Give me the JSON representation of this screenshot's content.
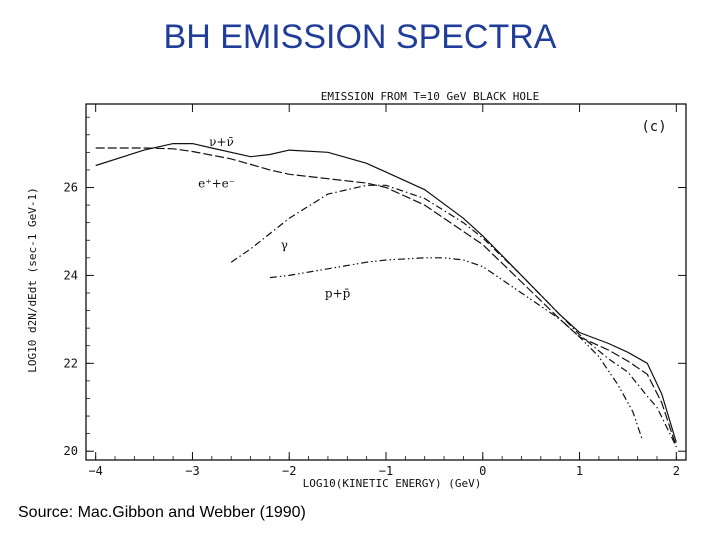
{
  "slide": {
    "title": "BH EMISSION SPECTRA",
    "source": "Source: Mac.Gibbon and Webber (1990)"
  },
  "colors": {
    "title": "#1f3d99",
    "ink": "#111111"
  },
  "chart_data": {
    "type": "line",
    "title": "EMISSION FROM T=10 GeV BLACK HOLE",
    "panel_label": "(c)",
    "xlabel": "LOG10(KINETIC ENERGY) (GeV)",
    "ylabel": "LOG10 d2N/dEdt (sec-1 GeV-1)",
    "xlim": [
      -4.1,
      2.1
    ],
    "ylim": [
      19.8,
      27.9
    ],
    "grid": false,
    "xticks": [
      -4,
      -3,
      -2,
      -1,
      0,
      1,
      2
    ],
    "xtick_labels": [
      "−4",
      "−3",
      "−2",
      "−1",
      "0",
      "1",
      "2"
    ],
    "yticks": [
      20,
      22,
      24,
      26
    ],
    "ytick_labels": [
      "20",
      "22",
      "24",
      "26"
    ],
    "series": [
      {
        "name": "ν+ν̄",
        "dash": "solid",
        "x": [
          -4.0,
          -3.5,
          -3.2,
          -3.0,
          -2.8,
          -2.4,
          -2.2,
          -2.0,
          -1.6,
          -1.2,
          -1.0,
          -0.6,
          -0.2,
          0.0,
          0.4,
          0.8,
          1.0,
          1.3,
          1.5,
          1.7,
          1.85,
          2.0
        ],
        "y": [
          26.5,
          26.85,
          27.0,
          27.0,
          26.9,
          26.7,
          26.75,
          26.85,
          26.8,
          26.55,
          26.35,
          25.95,
          25.3,
          24.9,
          24.0,
          23.1,
          22.7,
          22.45,
          22.25,
          22.0,
          21.3,
          20.2
        ]
      },
      {
        "name": "e⁺+e⁻",
        "dash": "dash",
        "x": [
          -4.0,
          -3.5,
          -3.2,
          -3.0,
          -2.6,
          -2.2,
          -2.0,
          -1.6,
          -1.2,
          -1.0,
          -0.6,
          -0.2,
          0.0,
          0.4,
          0.8,
          1.0,
          1.3,
          1.5,
          1.7,
          1.85,
          2.0
        ],
        "y": [
          26.9,
          26.9,
          26.88,
          26.82,
          26.65,
          26.4,
          26.3,
          26.2,
          26.1,
          26.0,
          25.6,
          25.0,
          24.7,
          23.85,
          23.0,
          22.6,
          22.3,
          22.05,
          21.75,
          21.1,
          20.1
        ]
      },
      {
        "name": "γ",
        "dash": "dashdot",
        "x": [
          -2.6,
          -2.4,
          -2.0,
          -1.6,
          -1.2,
          -1.0,
          -0.6,
          -0.2,
          0.0,
          0.4,
          0.8,
          1.0,
          1.3,
          1.5,
          1.7,
          1.8,
          2.0
        ],
        "y": [
          24.3,
          24.6,
          25.3,
          25.85,
          26.05,
          26.05,
          25.75,
          25.2,
          24.85,
          24.0,
          23.1,
          22.65,
          22.1,
          21.8,
          21.25,
          21.0,
          20.1
        ]
      },
      {
        "name": "p+p̄",
        "dash": "dashdotdot",
        "x": [
          -2.2,
          -2.0,
          -1.6,
          -1.2,
          -1.0,
          -0.6,
          -0.4,
          -0.2,
          0.0,
          0.4,
          0.8,
          1.0,
          1.2,
          1.4,
          1.55,
          1.65
        ],
        "y": [
          23.95,
          24.0,
          24.15,
          24.3,
          24.35,
          24.4,
          24.4,
          24.35,
          24.2,
          23.6,
          23.0,
          22.6,
          22.15,
          21.5,
          20.9,
          20.25
        ]
      }
    ]
  }
}
